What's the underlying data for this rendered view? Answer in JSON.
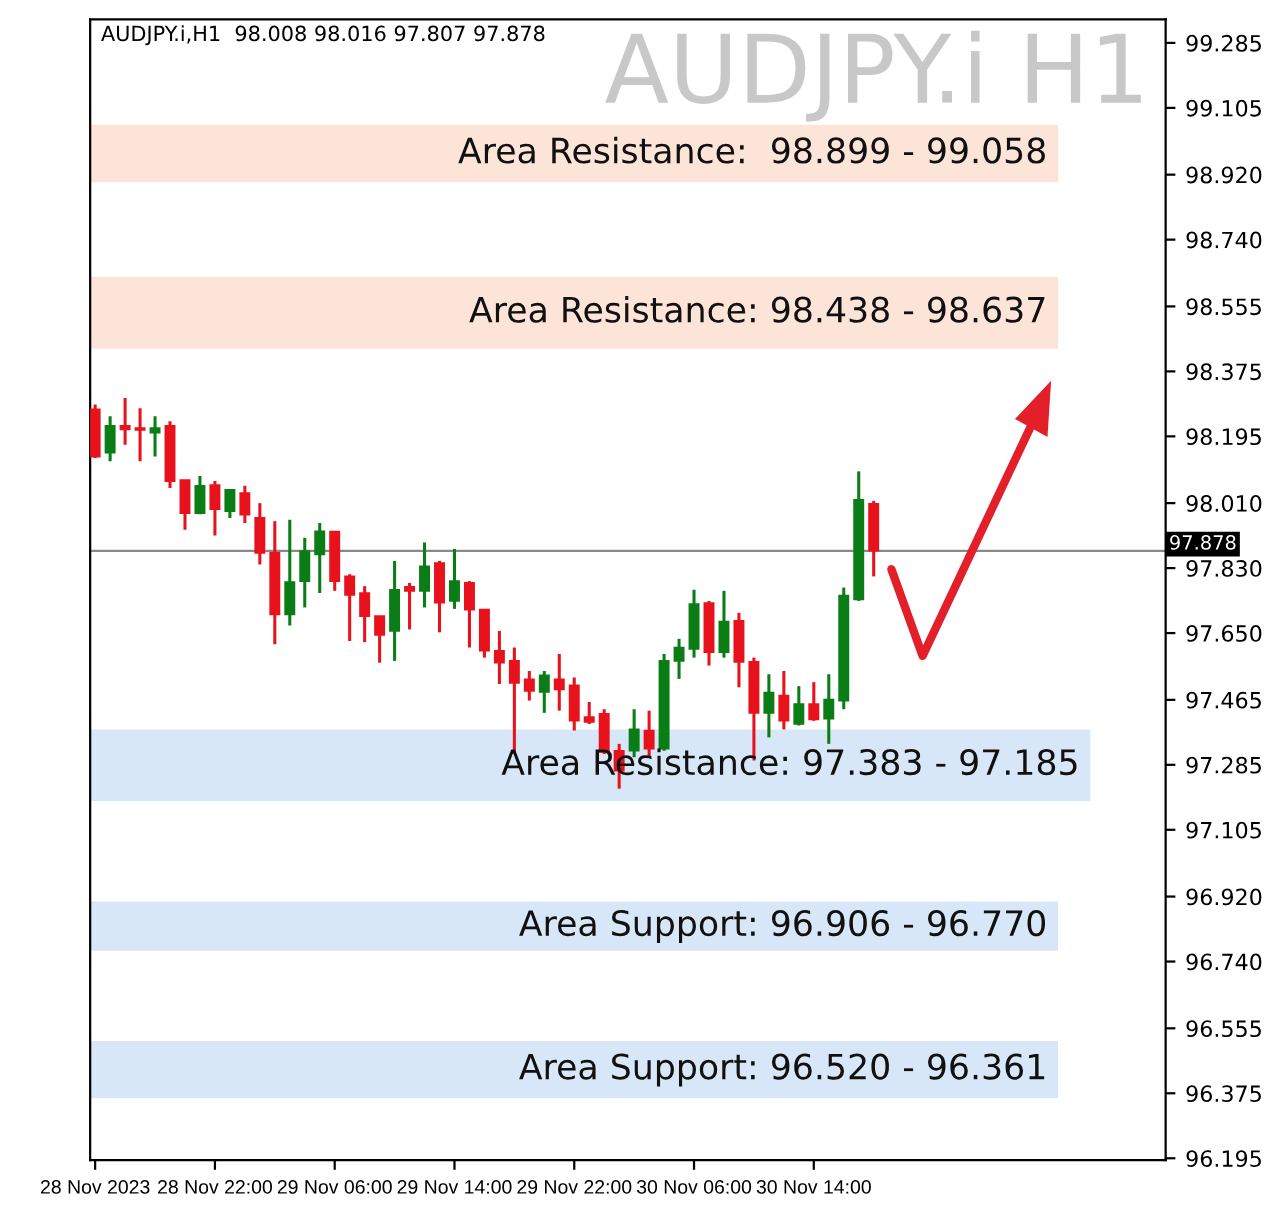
{
  "chart_data": {
    "type": "candlestick",
    "title": "AUDJPY.i H1",
    "subtitle": "AUDJPY.i,H1  98.008 98.016 97.807 97.878",
    "x": [
      "2023-11-28T14:00",
      "2023-11-28T15:00",
      "2023-11-28T16:00",
      "2023-11-28T17:00",
      "2023-11-28T18:00",
      "2023-11-28T19:00",
      "2023-11-28T20:00",
      "2023-11-28T21:00",
      "2023-11-28T22:00",
      "2023-11-28T23:00",
      "2023-11-29T00:00",
      "2023-11-29T01:00",
      "2023-11-29T02:00",
      "2023-11-29T03:00",
      "2023-11-29T04:00",
      "2023-11-29T05:00",
      "2023-11-29T06:00",
      "2023-11-29T07:00",
      "2023-11-29T08:00",
      "2023-11-29T09:00",
      "2023-11-29T10:00",
      "2023-11-29T11:00",
      "2023-11-29T12:00",
      "2023-11-29T13:00",
      "2023-11-29T14:00",
      "2023-11-29T15:00",
      "2023-11-29T16:00",
      "2023-11-29T17:00",
      "2023-11-29T18:00",
      "2023-11-29T19:00",
      "2023-11-29T20:00",
      "2023-11-29T21:00",
      "2023-11-29T22:00",
      "2023-11-29T23:00",
      "2023-11-30T00:00",
      "2023-11-30T01:00",
      "2023-11-30T02:00",
      "2023-11-30T03:00",
      "2023-11-30T04:00",
      "2023-11-30T05:00",
      "2023-11-30T06:00",
      "2023-11-30T07:00",
      "2023-11-30T08:00",
      "2023-11-30T09:00",
      "2023-11-30T10:00",
      "2023-11-30T11:00",
      "2023-11-30T12:00",
      "2023-11-30T13:00",
      "2023-11-30T14:00",
      "2023-11-30T15:00",
      "2023-11-30T16:00",
      "2023-11-30T17:00",
      "2023-11-30T18:00"
    ],
    "ohlc": [
      [
        98.27,
        98.283,
        98.135,
        98.139
      ],
      [
        98.15,
        98.251,
        98.126,
        98.224
      ],
      [
        98.224,
        98.301,
        98.172,
        98.214
      ],
      [
        98.218,
        98.273,
        98.126,
        98.213
      ],
      [
        98.205,
        98.251,
        98.139,
        98.218
      ],
      [
        98.224,
        98.237,
        98.052,
        98.071
      ],
      [
        98.074,
        98.074,
        97.936,
        97.982
      ],
      [
        97.982,
        98.085,
        97.979,
        98.058
      ],
      [
        98.06,
        98.071,
        97.92,
        97.993
      ],
      [
        97.988,
        98.047,
        97.969,
        98.047
      ],
      [
        98.038,
        98.058,
        97.955,
        97.978
      ],
      [
        97.969,
        98.01,
        97.84,
        97.872
      ],
      [
        97.872,
        97.96,
        97.619,
        97.702
      ],
      [
        97.702,
        97.964,
        97.671,
        97.791
      ],
      [
        97.794,
        97.914,
        97.721,
        97.877
      ],
      [
        97.868,
        97.955,
        97.761,
        97.932
      ],
      [
        97.931,
        97.931,
        97.767,
        97.794
      ],
      [
        97.807,
        97.813,
        97.628,
        97.756
      ],
      [
        97.761,
        97.78,
        97.625,
        97.697
      ],
      [
        97.697,
        97.697,
        97.568,
        97.645
      ],
      [
        97.656,
        97.85,
        97.573,
        97.77
      ],
      [
        97.778,
        97.789,
        97.66,
        97.767
      ],
      [
        97.767,
        97.901,
        97.721,
        97.835
      ],
      [
        97.844,
        97.85,
        97.652,
        97.734
      ],
      [
        97.739,
        97.883,
        97.717,
        97.794
      ],
      [
        97.789,
        97.794,
        97.61,
        97.715
      ],
      [
        97.715,
        97.715,
        97.582,
        97.601
      ],
      [
        97.601,
        97.656,
        97.509,
        97.568
      ],
      [
        97.573,
        97.61,
        97.315,
        97.512
      ],
      [
        97.522,
        97.545,
        97.463,
        97.49
      ],
      [
        97.487,
        97.545,
        97.429,
        97.533
      ],
      [
        97.522,
        97.592,
        97.435,
        97.494
      ],
      [
        97.505,
        97.527,
        97.38,
        97.407
      ],
      [
        97.417,
        97.459,
        97.398,
        97.404
      ],
      [
        97.426,
        97.439,
        97.315,
        97.321
      ],
      [
        97.324,
        97.343,
        97.219,
        97.269
      ],
      [
        97.324,
        97.439,
        97.306,
        97.383
      ],
      [
        97.38,
        97.435,
        97.306,
        97.33
      ],
      [
        97.33,
        97.592,
        97.324,
        97.573
      ],
      [
        97.573,
        97.634,
        97.523,
        97.61
      ],
      [
        97.606,
        97.77,
        97.582,
        97.73
      ],
      [
        97.733,
        97.739,
        97.56,
        97.597
      ],
      [
        97.597,
        97.767,
        97.582,
        97.682
      ],
      [
        97.684,
        97.706,
        97.5,
        97.57
      ],
      [
        97.57,
        97.582,
        97.297,
        97.429
      ],
      [
        97.429,
        97.536,
        97.361,
        97.485
      ],
      [
        97.477,
        97.545,
        97.383,
        97.407
      ],
      [
        97.398,
        97.503,
        97.394,
        97.453
      ],
      [
        97.453,
        97.514,
        97.407,
        97.411
      ],
      [
        97.413,
        97.536,
        97.343,
        97.466
      ],
      [
        97.463,
        97.776,
        97.439,
        97.754
      ],
      [
        97.743,
        98.098,
        97.739,
        98.019
      ],
      [
        98.008,
        98.016,
        97.807,
        97.878
      ]
    ],
    "colors": [
      "#e8121c",
      "#0b7d16",
      "#e8121c",
      "#e8121c",
      "#0b7d16",
      "#e8121c",
      "#e8121c",
      "#0b7d16",
      "#e8121c",
      "#0b7d16",
      "#e8121c",
      "#e8121c",
      "#e8121c",
      "#0b7d16",
      "#0b7d16",
      "#0b7d16",
      "#e8121c",
      "#e8121c",
      "#e8121c",
      "#e8121c",
      "#0b7d16",
      "#e8121c",
      "#0b7d16",
      "#e8121c",
      "#0b7d16",
      "#e8121c",
      "#e8121c",
      "#e8121c",
      "#e8121c",
      "#e8121c",
      "#0b7d16",
      "#e8121c",
      "#e8121c",
      "#e8121c",
      "#e8121c",
      "#e8121c",
      "#0b7d16",
      "#e8121c",
      "#0b7d16",
      "#0b7d16",
      "#0b7d16",
      "#e8121c",
      "#0b7d16",
      "#e8121c",
      "#e8121c",
      "#0b7d16",
      "#e8121c",
      "#0b7d16",
      "#e8121c",
      "#0b7d16",
      "#0b7d16",
      "#0b7d16",
      "#e8121c"
    ],
    "xlim": [
      "2023-11-28T13:40",
      "2023-12-01T13:30"
    ],
    "xticks": [
      {
        "value": "2023-11-28T14:00",
        "label": "28 Nov 2023"
      },
      {
        "value": "2023-11-28T22:00",
        "label": "28 Nov 22:00"
      },
      {
        "value": "2023-11-29T06:00",
        "label": "29 Nov 06:00"
      },
      {
        "value": "2023-11-29T14:00",
        "label": "29 Nov 14:00"
      },
      {
        "value": "2023-11-29T22:00",
        "label": "29 Nov 22:00"
      },
      {
        "value": "2023-11-30T06:00",
        "label": "30 Nov 06:00"
      },
      {
        "value": "2023-11-30T14:00",
        "label": "30 Nov 14:00"
      }
    ],
    "ylim": [
      96.19,
      99.35
    ],
    "yticks": [
      {
        "value": 99.285,
        "label": "99.285"
      },
      {
        "value": 99.105,
        "label": "99.105"
      },
      {
        "value": 98.92,
        "label": "98.920"
      },
      {
        "value": 98.74,
        "label": "98.740"
      },
      {
        "value": 98.555,
        "label": "98.555"
      },
      {
        "value": 98.375,
        "label": "98.375"
      },
      {
        "value": 98.195,
        "label": "98.195"
      },
      {
        "value": 98.01,
        "label": "98.010"
      },
      {
        "value": 97.83,
        "label": "97.830"
      },
      {
        "value": 97.65,
        "label": "97.650"
      },
      {
        "value": 97.465,
        "label": "97.465"
      },
      {
        "value": 97.285,
        "label": "97.285"
      },
      {
        "value": 97.105,
        "label": "97.105"
      },
      {
        "value": 96.92,
        "label": "96.920"
      },
      {
        "value": 96.74,
        "label": "96.740"
      },
      {
        "value": 96.555,
        "label": "96.555"
      },
      {
        "value": 96.375,
        "label": "96.375"
      },
      {
        "value": 96.195,
        "label": "96.195"
      }
    ],
    "ref_lines": [
      {
        "axis": "y",
        "value": 97.878,
        "label": "97.878",
        "color": "#8a8a8a"
      }
    ],
    "bands": [
      {
        "axis": "y",
        "from": 98.899,
        "to": 99.058,
        "label": "Area Resistance:  98.899 - 99.058",
        "color": "#fde4d8"
      },
      {
        "axis": "y",
        "from": 98.438,
        "to": 98.637,
        "label": "Area Resistance: 98.438 - 98.637",
        "color": "#fde4d8"
      },
      {
        "axis": "y",
        "from": 97.185,
        "to": 97.383,
        "label": "Area Resistance: 97.383 - 97.185",
        "color": "#d8e7f7"
      },
      {
        "axis": "y",
        "from": 96.77,
        "to": 96.906,
        "label": "Area Support: 96.906 - 96.770",
        "color": "#d8e7f7"
      },
      {
        "axis": "y",
        "from": 96.361,
        "to": 96.52,
        "label": "Area Support: 96.520 - 96.361",
        "color": "#d8e7f7"
      }
    ],
    "grid": false
  }
}
